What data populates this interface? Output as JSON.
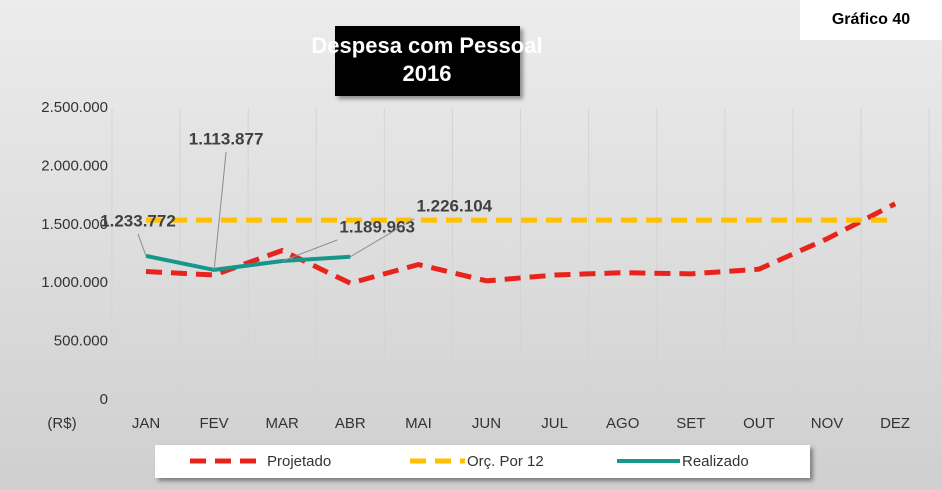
{
  "chart_data": {
    "type": "line",
    "title": "Despesa com Pessoal",
    "subtitle": "2016",
    "badge": "Gráfico 40",
    "y_axis_label": "(R$)",
    "categories": [
      "JAN",
      "FEV",
      "MAR",
      "ABR",
      "MAI",
      "JUN",
      "JUL",
      "AGO",
      "SET",
      "OUT",
      "NOV",
      "DEZ"
    ],
    "series": [
      {
        "name": "Projetado",
        "color": "#e8231b",
        "dashed": true,
        "values": [
          1100000,
          1070000,
          1280000,
          1000000,
          1160000,
          1020000,
          1070000,
          1090000,
          1080000,
          1120000,
          1380000,
          1680000
        ]
      },
      {
        "name": "Orç. Por 12",
        "color": "#ffc000",
        "dashed": true,
        "values": [
          1540000,
          1540000,
          1540000,
          1540000,
          1540000,
          1540000,
          1540000,
          1540000,
          1540000,
          1540000,
          1540000,
          1540000
        ]
      },
      {
        "name": "Realizado",
        "color": "#16978c",
        "dashed": false,
        "values": [
          1233772,
          1113877,
          1189963,
          1226104,
          null,
          null,
          null,
          null,
          null,
          null,
          null,
          null
        ],
        "value_labels": [
          "1.233.772",
          "1.113.877",
          "1.189.963",
          "1.226.104",
          null,
          null,
          null,
          null,
          null,
          null,
          null,
          null
        ]
      }
    ],
    "ylim": [
      0,
      2500000
    ],
    "yticks": [
      0,
      {
        "value": 500000,
        "label": "500.000"
      },
      {
        "value": 1000000,
        "label": "1.000.000"
      },
      {
        "value": 1500000,
        "label": "1.500.000"
      },
      {
        "value": 2000000,
        "label": "2.000.000"
      },
      {
        "value": 2500000,
        "label": "2.500.000"
      }
    ],
    "grid": true
  }
}
